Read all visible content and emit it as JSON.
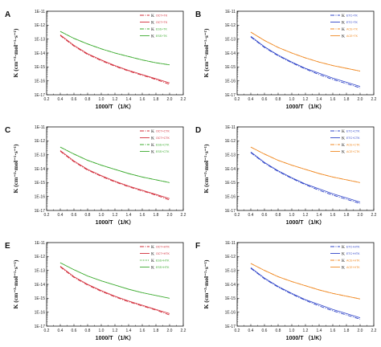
{
  "chart_data": [
    {
      "panel": "A",
      "type": "line",
      "xlabel": "1000/T （1/K）",
      "ylabel": "K (cm⁻³·mol⁻¹·s⁻¹)",
      "xlim": [
        0.2,
        2.2
      ],
      "ylim_exp": [
        -17,
        -11
      ],
      "x_ticks": [
        "0.2",
        "0.4",
        "0.6",
        "0.8",
        "1.0",
        "1.2",
        "1.4",
        "1.6",
        "1.8",
        "2.0",
        "2.2"
      ],
      "y_ticks": [
        "1E-17",
        "1E-16",
        "1E-15",
        "1E-14",
        "1E-13",
        "1E-12",
        "1E-11"
      ],
      "legend_position": "top-right",
      "x": [
        0.4,
        0.6,
        0.8,
        1.0,
        1.2,
        1.4,
        1.6,
        1.8,
        2.0
      ],
      "series": [
        {
          "name": "K",
          "tag": "OCT+TK",
          "color": "#d22d3a",
          "dash": "5,1.5,1,1.5",
          "log10_values": [
            -12.75,
            -13.5,
            -14.1,
            -14.55,
            -14.95,
            -15.3,
            -15.6,
            -15.9,
            -16.25
          ]
        },
        {
          "name": "K",
          "tag": "OCT+TK",
          "color": "#d22d3a",
          "dash": "",
          "log10_values": [
            -12.7,
            -13.45,
            -14.05,
            -14.5,
            -14.9,
            -15.25,
            -15.55,
            -15.85,
            -16.15
          ]
        },
        {
          "name": "K",
          "tag": "ESS+TK",
          "color": "#3cab2f",
          "dash": "5,1.5,1,1.5",
          "log10_values": [
            -12.45,
            -12.95,
            -13.35,
            -13.7,
            -14.0,
            -14.25,
            -14.5,
            -14.7,
            -14.85
          ]
        },
        {
          "name": "K",
          "tag": "ESS+TK",
          "color": "#3cab2f",
          "dash": "",
          "log10_values": [
            -12.45,
            -12.95,
            -13.35,
            -13.7,
            -14.0,
            -14.25,
            -14.5,
            -14.7,
            -14.85
          ]
        }
      ]
    },
    {
      "panel": "B",
      "type": "line",
      "xlabel": "1000/T （1/K）",
      "ylabel": "K (cm⁻³·mol⁻¹·s⁻¹)",
      "xlim": [
        0.2,
        2.2
      ],
      "ylim_exp": [
        -17,
        -11
      ],
      "x_ticks": [
        "0.2",
        "0.4",
        "0.6",
        "0.8",
        "1.0",
        "1.2",
        "1.4",
        "1.6",
        "1.8",
        "2.0",
        "2.2"
      ],
      "y_ticks": [
        "1E-17",
        "1E-16",
        "1E-15",
        "1E-14",
        "1E-13",
        "1E-12",
        "1E-11"
      ],
      "legend_position": "top-right",
      "x": [
        0.4,
        0.6,
        0.8,
        1.0,
        1.2,
        1.4,
        1.6,
        1.8,
        2.0
      ],
      "series": [
        {
          "name": "K",
          "tag": "ETC+TK",
          "color": "#2f44c8",
          "dash": "5,1.5,1,1.5",
          "log10_values": [
            -12.85,
            -13.6,
            -14.2,
            -14.7,
            -15.15,
            -15.55,
            -15.9,
            -16.2,
            -16.5
          ]
        },
        {
          "name": "K",
          "tag": "ETC+TK",
          "color": "#2f44c8",
          "dash": "",
          "log10_values": [
            -12.8,
            -13.55,
            -14.15,
            -14.65,
            -15.1,
            -15.45,
            -15.8,
            -16.1,
            -16.4
          ]
        },
        {
          "name": "K",
          "tag": "ACE+TK",
          "color": "#f08a24",
          "dash": "5,1.5,1,1.5",
          "log10_values": [
            -12.5,
            -13.1,
            -13.6,
            -14.0,
            -14.35,
            -14.65,
            -14.9,
            -15.1,
            -15.3
          ]
        },
        {
          "name": "K",
          "tag": "ACE+TK",
          "color": "#f08a24",
          "dash": "",
          "log10_values": [
            -12.5,
            -13.1,
            -13.6,
            -14.0,
            -14.35,
            -14.65,
            -14.9,
            -15.1,
            -15.3
          ]
        }
      ]
    },
    {
      "panel": "C",
      "type": "line",
      "xlabel": "1000/T （1/K）",
      "ylabel": "K (cm⁻³·mol⁻¹·s⁻¹)",
      "xlim": [
        0.2,
        2.2
      ],
      "ylim_exp": [
        -17,
        -11
      ],
      "x_ticks": [
        "0.2",
        "0.4",
        "0.6",
        "0.8",
        "1.0",
        "1.2",
        "1.4",
        "1.6",
        "1.8",
        "2.0",
        "2.2"
      ],
      "y_ticks": [
        "1E-17",
        "1E-16",
        "1E-15",
        "1E-14",
        "1E-13",
        "1E-12",
        "1E-11"
      ],
      "legend_position": "top-right",
      "x": [
        0.4,
        0.6,
        0.8,
        1.0,
        1.2,
        1.4,
        1.6,
        1.8,
        2.0
      ],
      "series": [
        {
          "name": "K",
          "tag": "OCT+CTK",
          "color": "#d22d3a",
          "dash": "5,1.5,1,1.5",
          "log10_values": [
            -12.75,
            -13.5,
            -14.1,
            -14.55,
            -14.95,
            -15.3,
            -15.6,
            -15.9,
            -16.25
          ]
        },
        {
          "name": "K",
          "tag": "OCT+CTK",
          "color": "#d22d3a",
          "dash": "",
          "log10_values": [
            -12.7,
            -13.45,
            -14.05,
            -14.5,
            -14.9,
            -15.25,
            -15.55,
            -15.85,
            -16.15
          ]
        },
        {
          "name": "K",
          "tag": "ESS+CTK",
          "color": "#3cab2f",
          "dash": "5,1.5,1,1.5",
          "log10_values": [
            -12.45,
            -12.95,
            -13.4,
            -13.75,
            -14.05,
            -14.35,
            -14.6,
            -14.8,
            -15.0
          ]
        },
        {
          "name": "K",
          "tag": "ESS+CTK",
          "color": "#3cab2f",
          "dash": "",
          "log10_values": [
            -12.45,
            -12.95,
            -13.4,
            -13.75,
            -14.05,
            -14.35,
            -14.6,
            -14.8,
            -15.0
          ]
        }
      ]
    },
    {
      "panel": "D",
      "type": "line",
      "xlabel": "1000/T （1/K）",
      "ylabel": "K (cm⁻³·mol⁻¹·s⁻¹)",
      "xlim": [
        0.2,
        2.2
      ],
      "ylim_exp": [
        -17,
        -11
      ],
      "x_ticks": [
        "0.2",
        "0.4",
        "0.6",
        "0.8",
        "1.0",
        "1.2",
        "1.4",
        "1.6",
        "1.8",
        "2.0",
        "2.2"
      ],
      "y_ticks": [
        "1E-17",
        "1E-16",
        "1E-15",
        "1E-14",
        "1E-13",
        "1E-12",
        "1E-11"
      ],
      "legend_position": "top-right",
      "x": [
        0.4,
        0.6,
        0.8,
        1.0,
        1.2,
        1.4,
        1.6,
        1.8,
        2.0
      ],
      "series": [
        {
          "name": "K",
          "tag": "ETC+CTK",
          "color": "#2f44c8",
          "dash": "5,1.5,1,1.5",
          "log10_values": [
            -12.85,
            -13.6,
            -14.2,
            -14.7,
            -15.15,
            -15.55,
            -15.9,
            -16.2,
            -16.5
          ]
        },
        {
          "name": "K",
          "tag": "ETC+CTK",
          "color": "#2f44c8",
          "dash": "",
          "log10_values": [
            -12.8,
            -13.55,
            -14.15,
            -14.65,
            -15.1,
            -15.45,
            -15.8,
            -16.1,
            -16.4
          ]
        },
        {
          "name": "K",
          "tag": "ACE+CTK",
          "color": "#f08a24",
          "dash": "5,1.5,1,1.5",
          "log10_values": [
            -12.45,
            -12.95,
            -13.4,
            -13.75,
            -14.05,
            -14.35,
            -14.6,
            -14.8,
            -15.0
          ]
        },
        {
          "name": "K",
          "tag": "ACE+CTK",
          "color": "#f08a24",
          "dash": "",
          "log10_values": [
            -12.45,
            -12.95,
            -13.4,
            -13.75,
            -14.05,
            -14.35,
            -14.6,
            -14.8,
            -15.0
          ]
        }
      ]
    },
    {
      "panel": "E",
      "type": "line",
      "xlabel": "1000/T （1/K）",
      "ylabel": "K (cm⁻³·mol⁻¹·s⁻¹)",
      "xlim": [
        0.2,
        2.2
      ],
      "ylim_exp": [
        -17,
        -11
      ],
      "x_ticks": [
        "0.2",
        "0.4",
        "0.6",
        "0.8",
        "1.0",
        "1.2",
        "1.4",
        "1.6",
        "1.8",
        "2.0",
        "2.2"
      ],
      "y_ticks": [
        "1E-17",
        "1E-16",
        "1E-15",
        "1E-14",
        "1E-13",
        "1E-12",
        "1E-11"
      ],
      "legend_position": "top-right",
      "x": [
        0.4,
        0.6,
        0.8,
        1.0,
        1.2,
        1.4,
        1.6,
        1.8,
        2.0
      ],
      "series": [
        {
          "name": "K",
          "tag": "OCT+HTK",
          "color": "#d22d3a",
          "dash": "5,1.5,1,1.5",
          "log10_values": [
            -12.75,
            -13.5,
            -14.05,
            -14.5,
            -14.9,
            -15.25,
            -15.55,
            -15.85,
            -16.2
          ]
        },
        {
          "name": "K",
          "tag": "OCT+HTK",
          "color": "#d22d3a",
          "dash": "",
          "log10_values": [
            -12.7,
            -13.45,
            -14.0,
            -14.45,
            -14.85,
            -15.2,
            -15.5,
            -15.8,
            -16.1
          ]
        },
        {
          "name": "K",
          "tag": "ESS+HTK",
          "color": "#3cab2f",
          "dash": "1,1",
          "log10_values": [
            -12.45,
            -12.95,
            -13.4,
            -13.75,
            -14.05,
            -14.35,
            -14.6,
            -14.8,
            -15.0
          ]
        },
        {
          "name": "K",
          "tag": "ESS+HTK",
          "color": "#3cab2f",
          "dash": "",
          "log10_values": [
            -12.45,
            -12.95,
            -13.4,
            -13.75,
            -14.05,
            -14.35,
            -14.6,
            -14.8,
            -15.0
          ]
        }
      ]
    },
    {
      "panel": "F",
      "type": "line",
      "xlabel": "1000/T （1/K）",
      "ylabel": "K (cm⁻³·mol⁻¹·s⁻¹)",
      "xlim": [
        0.2,
        2.2
      ],
      "ylim_exp": [
        -17,
        -11
      ],
      "x_ticks": [
        "0.2",
        "0.4",
        "0.6",
        "0.8",
        "1.0",
        "1.2",
        "1.4",
        "1.6",
        "1.8",
        "2.0",
        "2.2"
      ],
      "y_ticks": [
        "1E-17",
        "1E-16",
        "1E-15",
        "1E-14",
        "1E-13",
        "1E-12",
        "1E-11"
      ],
      "legend_position": "top-right",
      "x": [
        0.4,
        0.6,
        0.8,
        1.0,
        1.2,
        1.4,
        1.6,
        1.8,
        2.0
      ],
      "series": [
        {
          "name": "K",
          "tag": "ETC+HTK",
          "color": "#2f44c8",
          "dash": "5,1.5,1,1.5",
          "log10_values": [
            -12.85,
            -13.6,
            -14.2,
            -14.7,
            -15.15,
            -15.55,
            -15.9,
            -16.2,
            -16.5
          ]
        },
        {
          "name": "K",
          "tag": "ETC+HTK",
          "color": "#2f44c8",
          "dash": "",
          "log10_values": [
            -12.8,
            -13.55,
            -14.15,
            -14.65,
            -15.1,
            -15.45,
            -15.8,
            -16.1,
            -16.4
          ]
        },
        {
          "name": "K",
          "tag": "ACE+HTK",
          "color": "#f08a24",
          "dash": "5,1.5,1,1.5",
          "log10_values": [
            -12.5,
            -13.0,
            -13.45,
            -13.8,
            -14.1,
            -14.4,
            -14.65,
            -14.85,
            -15.05
          ]
        },
        {
          "name": "K",
          "tag": "ACE+HTK",
          "color": "#f08a24",
          "dash": "",
          "log10_values": [
            -12.5,
            -13.0,
            -13.45,
            -13.8,
            -14.1,
            -14.4,
            -14.65,
            -14.85,
            -15.05
          ]
        }
      ]
    }
  ]
}
